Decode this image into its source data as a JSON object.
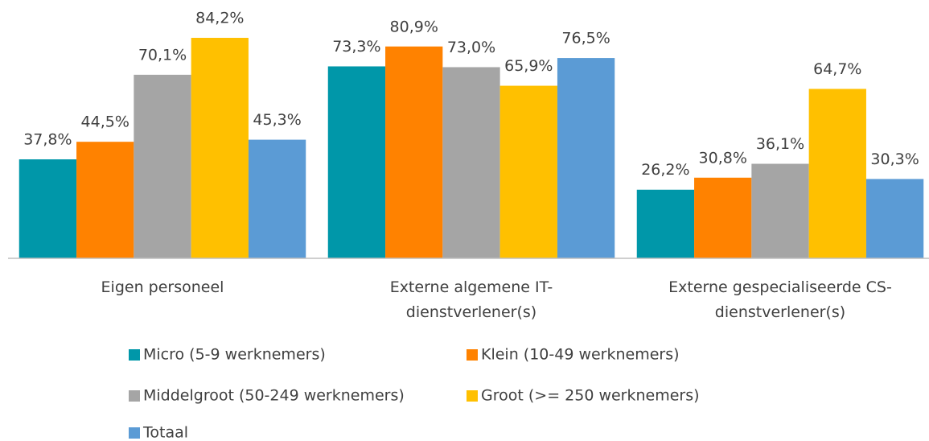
{
  "chart_data": {
    "type": "bar",
    "categories": [
      "Eigen personeel",
      "Externe algemene IT-dienstverlener(s)",
      "Externe gespecialiseerde CS-dienstverlener(s)"
    ],
    "series": [
      {
        "name": "Micro (5-9 werknemers)",
        "color": "#0097a9",
        "values": [
          37.8,
          73.3,
          26.2
        ],
        "value_labels": [
          "37,8%",
          "73,3%",
          "26,2%"
        ]
      },
      {
        "name": "Klein (10-49 werknemers)",
        "color": "#ff8200",
        "values": [
          44.5,
          80.9,
          30.8
        ],
        "value_labels": [
          "44,5%",
          "80,9%",
          "30,8%"
        ]
      },
      {
        "name": "Middelgroot (50-249 werknemers)",
        "color": "#a5a5a5",
        "values": [
          70.1,
          73.0,
          36.1
        ],
        "value_labels": [
          "70,1%",
          "73,0%",
          "36,1%"
        ]
      },
      {
        "name": "Groot (>= 250 werknemers)",
        "color": "#ffc000",
        "values": [
          84.2,
          65.9,
          64.7
        ],
        "value_labels": [
          "84,2%",
          "65,9%",
          "64,7%"
        ]
      },
      {
        "name": "Totaal",
        "color": "#5b9bd5",
        "values": [
          45.3,
          76.5,
          30.3
        ],
        "value_labels": [
          "45,3%",
          "76,5%",
          "30,3%"
        ]
      }
    ],
    "legend": "bottom"
  }
}
